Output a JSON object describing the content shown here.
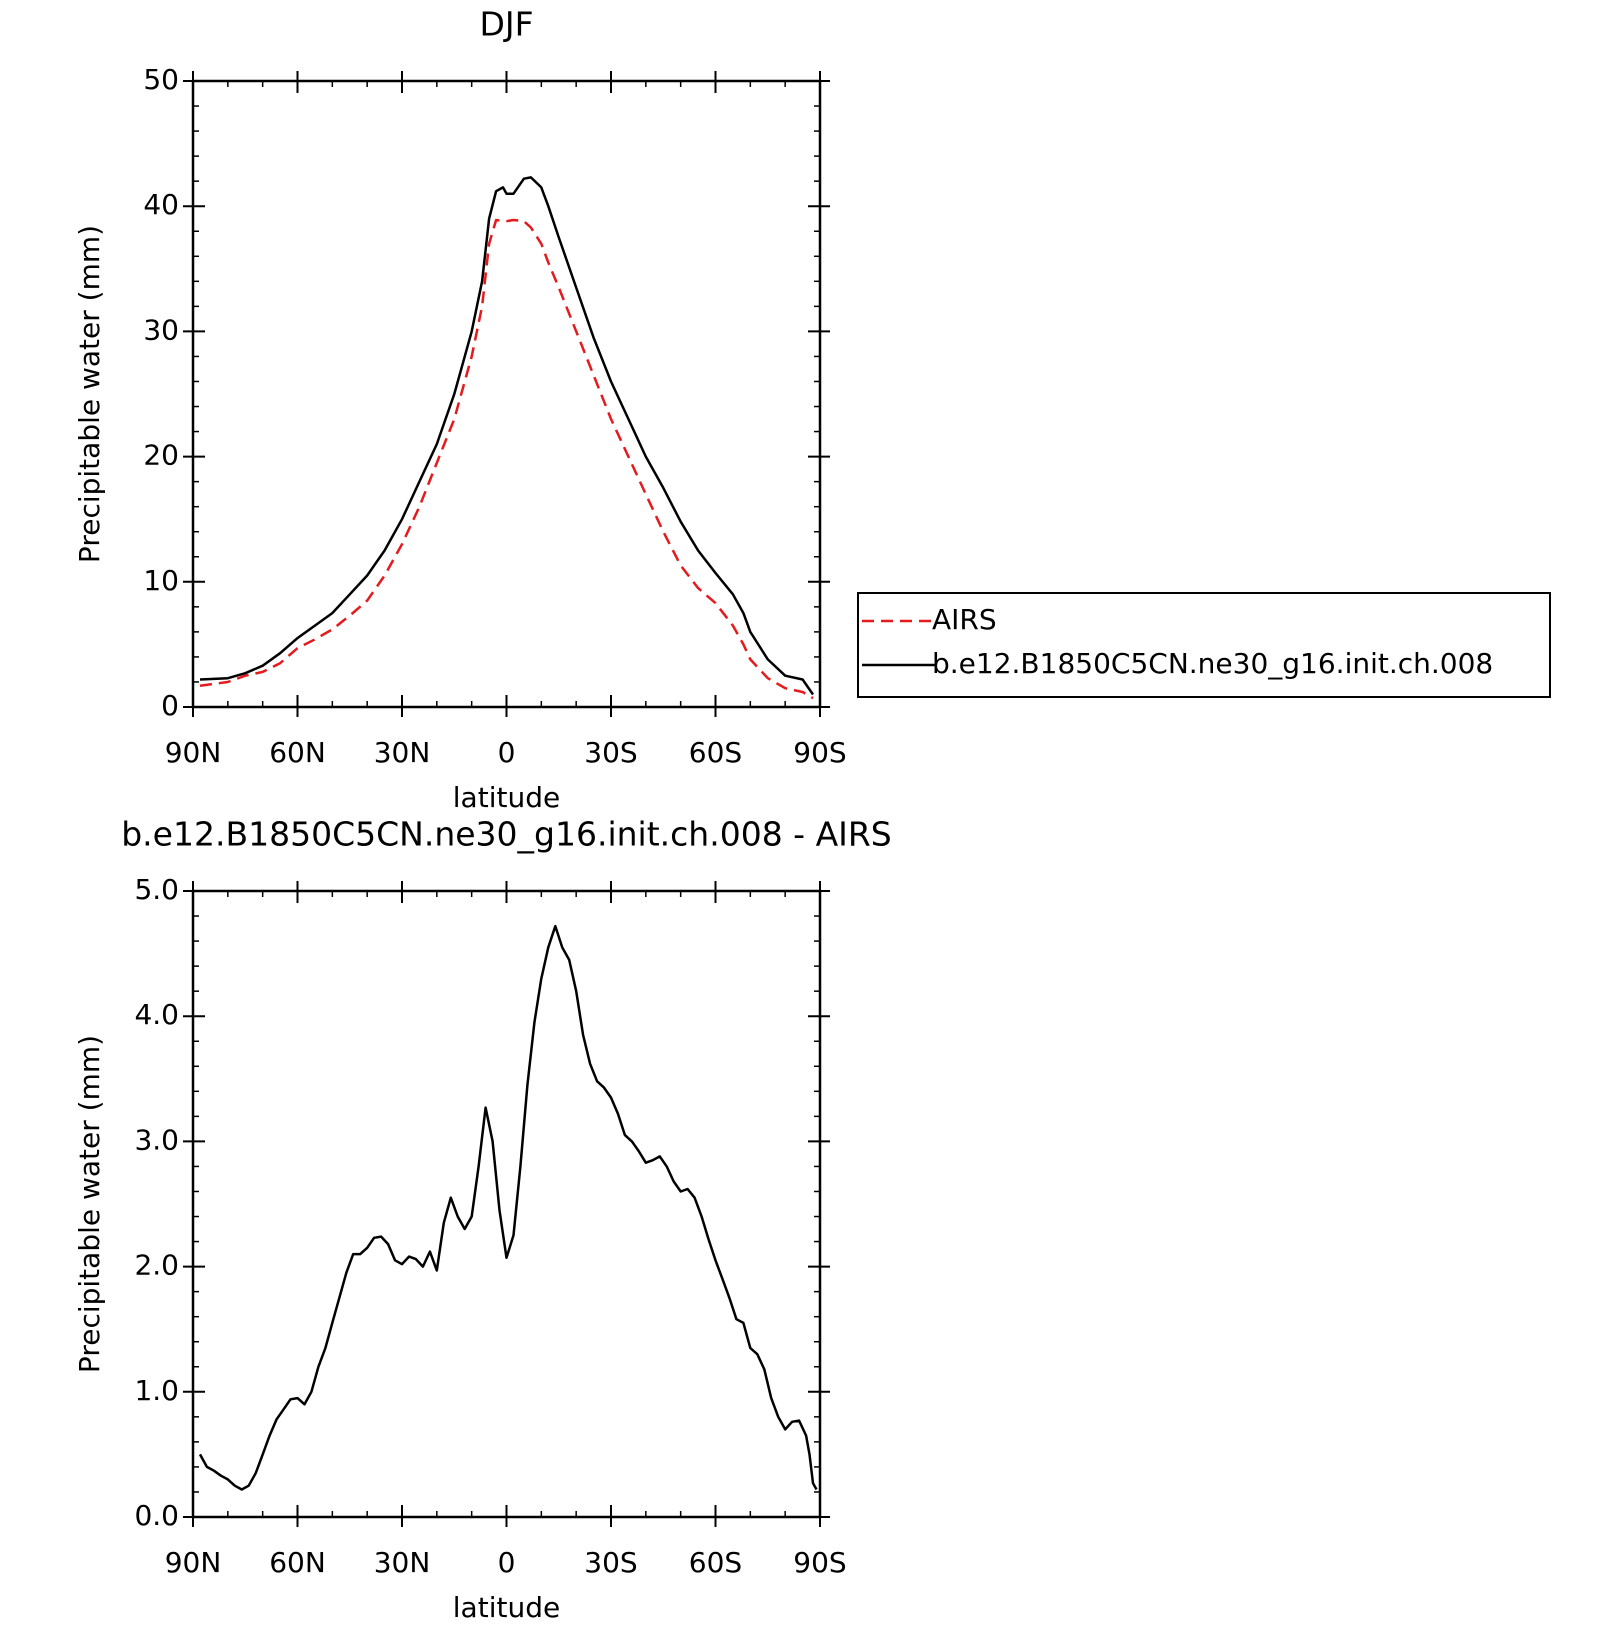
{
  "chart_data": [
    {
      "type": "line",
      "title": "DJF",
      "xlabel": "latitude",
      "ylabel": "Precipitable water (mm)",
      "x": [
        88,
        80,
        75,
        70,
        65,
        60,
        55,
        50,
        45,
        40,
        35,
        30,
        25,
        20,
        15,
        10,
        7,
        5,
        3,
        1,
        0,
        -2,
        -5,
        -7,
        -10,
        -12,
        -15,
        -20,
        -25,
        -30,
        -35,
        -40,
        -45,
        -50,
        -55,
        -60,
        -65,
        -68,
        -70,
        -75,
        -80,
        -85,
        -88
      ],
      "series": [
        {
          "name": "AIRS",
          "color": "#e41a1c",
          "dash": true,
          "values": [
            1.7,
            2.0,
            2.5,
            2.8,
            3.5,
            4.7,
            5.4,
            6.2,
            7.3,
            8.5,
            10.5,
            13,
            16,
            19.5,
            23,
            28,
            32,
            37,
            38.9,
            38.8,
            38.8,
            38.9,
            38.8,
            38.3,
            37,
            35.5,
            33.5,
            30,
            26.5,
            23,
            20,
            17,
            14,
            11.3,
            9.5,
            8.3,
            6.5,
            5,
            3.8,
            2.3,
            1.5,
            1.2,
            0.7
          ]
        },
        {
          "name": "b.e12.B1850C5CN.ne30_g16.init.ch.008",
          "color": "#000000",
          "dash": false,
          "values": [
            2.2,
            2.3,
            2.7,
            3.3,
            4.3,
            5.5,
            6.5,
            7.5,
            9,
            10.5,
            12.5,
            15,
            18,
            21,
            25,
            30,
            34,
            39,
            41.2,
            41.5,
            41,
            41,
            42.2,
            42.3,
            41.5,
            40,
            37.5,
            33.5,
            29.5,
            26,
            23,
            20,
            17.5,
            14.8,
            12.5,
            10.7,
            9,
            7.5,
            6,
            3.8,
            2.5,
            2.2,
            1.0
          ]
        }
      ],
      "xlim": [
        90,
        -90
      ],
      "xticks": [
        {
          "value": 90,
          "label": "90N"
        },
        {
          "value": 60,
          "label": "60N"
        },
        {
          "value": 30,
          "label": "30N"
        },
        0,
        {
          "value": -30,
          "label": "30S"
        },
        {
          "value": -60,
          "label": "60S"
        },
        {
          "value": -90,
          "label": "90S"
        }
      ],
      "ylim": [
        0,
        50
      ],
      "yticks": [
        0,
        10,
        20,
        30,
        40,
        50
      ],
      "legend": "right"
    },
    {
      "type": "line",
      "title": "b.e12.B1850C5CN.ne30_g16.init.ch.008 - AIRS",
      "xlabel": "latitude",
      "ylabel": "Precipitable water (mm)",
      "x": [
        88,
        86,
        84,
        82,
        80,
        78,
        76,
        74,
        72,
        70,
        68,
        66,
        64,
        62,
        60,
        58,
        56,
        54,
        52,
        50,
        48,
        46,
        44,
        42,
        40,
        38,
        36,
        34,
        32,
        30,
        28,
        26,
        24,
        22,
        20,
        18,
        16,
        14,
        12,
        10,
        8,
        6,
        4,
        2,
        0,
        -2,
        -4,
        -6,
        -8,
        -10,
        -12,
        -14,
        -16,
        -18,
        -20,
        -22,
        -24,
        -26,
        -28,
        -30,
        -32,
        -34,
        -36,
        -38,
        -40,
        -42,
        -44,
        -46,
        -48,
        -50,
        -52,
        -54,
        -56,
        -58,
        -60,
        -62,
        -64,
        -66,
        -68,
        -70,
        -72,
        -74,
        -76,
        -78,
        -80,
        -82,
        -84,
        -86,
        -87,
        -88,
        -89
      ],
      "series": [
        {
          "color": "#000000",
          "dash": false,
          "values": [
            0.5,
            0.4,
            0.37,
            0.33,
            0.3,
            0.25,
            0.22,
            0.25,
            0.35,
            0.5,
            0.65,
            0.78,
            0.86,
            0.94,
            0.95,
            0.9,
            1.0,
            1.2,
            1.35,
            1.55,
            1.75,
            1.95,
            2.1,
            2.1,
            2.15,
            2.23,
            2.24,
            2.18,
            2.05,
            2.02,
            2.08,
            2.06,
            2.0,
            2.12,
            1.97,
            2.35,
            2.55,
            2.4,
            2.3,
            2.4,
            2.8,
            3.27,
            3.0,
            2.45,
            2.07,
            2.25,
            2.8,
            3.45,
            3.95,
            4.3,
            4.55,
            4.72,
            4.55,
            4.45,
            4.2,
            3.85,
            3.62,
            3.48,
            3.43,
            3.35,
            3.22,
            3.05,
            3.0,
            2.92,
            2.83,
            2.85,
            2.88,
            2.8,
            2.68,
            2.6,
            2.62,
            2.55,
            2.4,
            2.22,
            2.05,
            1.9,
            1.75,
            1.58,
            1.55,
            1.35,
            1.3,
            1.18,
            0.95,
            0.8,
            0.7,
            0.76,
            0.77,
            0.65,
            0.5,
            0.27,
            0.22
          ]
        }
      ],
      "xlim": [
        90,
        -90
      ],
      "xticks": [
        {
          "value": 90,
          "label": "90N"
        },
        {
          "value": 60,
          "label": "60N"
        },
        {
          "value": 30,
          "label": "30N"
        },
        0,
        {
          "value": -30,
          "label": "30S"
        },
        {
          "value": -60,
          "label": "60S"
        },
        {
          "value": -90,
          "label": "90S"
        }
      ],
      "ylim": [
        0,
        5
      ],
      "yticks": [
        {
          "value": 0,
          "label": "0.0"
        },
        {
          "value": 1,
          "label": "1.0"
        },
        {
          "value": 2,
          "label": "2.0"
        },
        {
          "value": 3,
          "label": "3.0"
        },
        {
          "value": 4,
          "label": "4.0"
        },
        {
          "value": 5,
          "label": "5.0"
        }
      ]
    }
  ]
}
